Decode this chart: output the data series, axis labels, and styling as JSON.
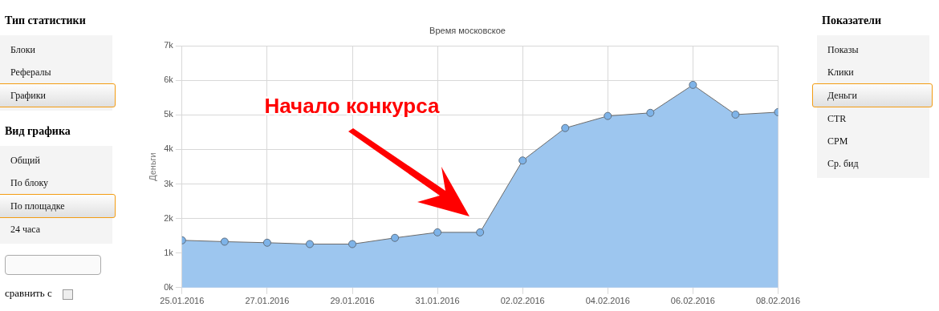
{
  "chart_data": {
    "type": "area",
    "title": "Время московское",
    "ylabel": "Деньги",
    "x": [
      "2016-01-25",
      "2016-01-26",
      "2016-01-27",
      "2016-01-28",
      "2016-01-29",
      "2016-01-30",
      "2016-01-31",
      "2016-02-01",
      "2016-02-02",
      "2016-02-03",
      "2016-02-04",
      "2016-02-05",
      "2016-02-06",
      "2016-02-07",
      "2016-02-08"
    ],
    "series": [
      {
        "color": "#9dc6ef",
        "values": [
          1370,
          1330,
          1300,
          1260,
          1260,
          1440,
          1600,
          1600,
          3680,
          4620,
          4970,
          5060,
          5870,
          5010,
          5080
        ]
      }
    ],
    "xlim": [
      "2016-01-25",
      "2016-02-08"
    ],
    "xticks": [
      {
        "value": "2016-01-25",
        "label": "25.01.2016"
      },
      {
        "value": "2016-01-27",
        "label": "27.01.2016"
      },
      {
        "value": "2016-01-29",
        "label": "29.01.2016"
      },
      {
        "value": "2016-01-31",
        "label": "31.01.2016"
      },
      {
        "value": "2016-02-02",
        "label": "02.02.2016"
      },
      {
        "value": "2016-02-04",
        "label": "04.02.2016"
      },
      {
        "value": "2016-02-06",
        "label": "06.02.2016"
      },
      {
        "value": "2016-02-08",
        "label": "08.02.2016"
      }
    ],
    "ylim": [
      0,
      7000
    ],
    "yticks": [
      {
        "value": 0,
        "label": "0k"
      },
      {
        "value": 1000,
        "label": "1k"
      },
      {
        "value": 2000,
        "label": "2k"
      },
      {
        "value": 3000,
        "label": "3k"
      },
      {
        "value": 4000,
        "label": "4k"
      },
      {
        "value": 5000,
        "label": "5k"
      },
      {
        "value": 6000,
        "label": "6k"
      },
      {
        "value": 7000,
        "label": "7k"
      }
    ],
    "grid": true,
    "marker": "circle",
    "annotations": [
      "Начало конкурса",
      "Тип статистики",
      "Блоки",
      "Рефералы",
      "Графики",
      "Вид графика",
      "Общий",
      "По блоку",
      "По площадке",
      "24 часа",
      "сравнить с",
      "Показатели",
      "Показы",
      "Клики",
      "Деньги",
      "CTR",
      "CPM",
      "Ср. бид"
    ]
  }
}
